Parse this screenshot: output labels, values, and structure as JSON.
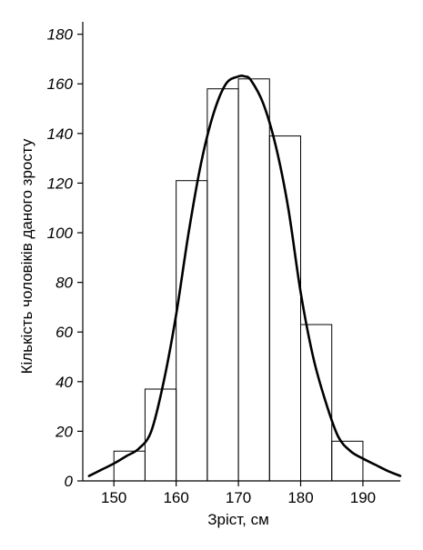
{
  "chart_data": {
    "type": "bar",
    "title": "",
    "xlabel": "Зріст, см",
    "ylabel": "Кількість чоловіків даного зросту",
    "xlim": [
      145,
      196
    ],
    "ylim": [
      0,
      185
    ],
    "x_ticks": [
      150,
      160,
      170,
      180,
      190
    ],
    "y_ticks": [
      0,
      20,
      40,
      60,
      80,
      100,
      120,
      140,
      160,
      180
    ],
    "bar_width": 5,
    "bins": [
      {
        "start": 150,
        "end": 155,
        "value": 12
      },
      {
        "start": 155,
        "end": 160,
        "value": 37
      },
      {
        "start": 160,
        "end": 165,
        "value": 121
      },
      {
        "start": 165,
        "end": 170,
        "value": 158
      },
      {
        "start": 170,
        "end": 175,
        "value": 162
      },
      {
        "start": 175,
        "end": 180,
        "value": 139
      },
      {
        "start": 180,
        "end": 185,
        "value": 63
      },
      {
        "start": 185,
        "end": 190,
        "value": 16
      }
    ],
    "curve": {
      "type": "normal-fit",
      "x": [
        146,
        148,
        150,
        152,
        154,
        156,
        158,
        160,
        162,
        164,
        166,
        168,
        170,
        171,
        172,
        174,
        176,
        178,
        180,
        182,
        184,
        186,
        188,
        190,
        192,
        194,
        196
      ],
      "y": [
        2,
        4.5,
        7,
        10,
        13,
        20,
        40,
        67,
        100,
        128,
        148,
        160,
        163,
        163,
        161.5,
        152,
        135,
        110,
        76,
        50,
        32,
        18,
        12,
        9,
        6.5,
        4,
        2
      ]
    },
    "grid": false,
    "legend": "none"
  }
}
